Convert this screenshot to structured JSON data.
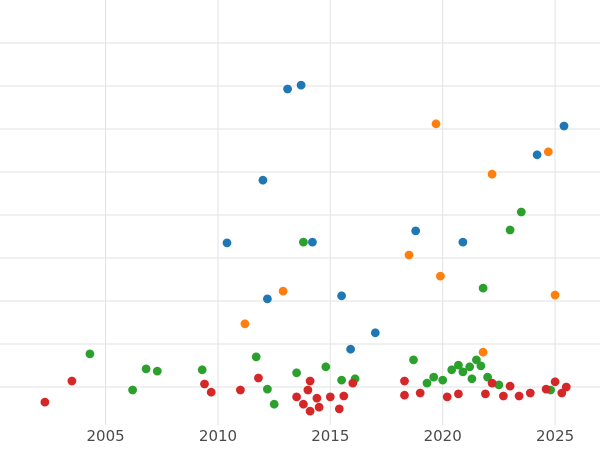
{
  "chart_data": {
    "type": "scatter",
    "title": "",
    "xlabel": "",
    "ylabel": "",
    "description": "Scatter plot with blue, orange, green and red points spanning years 2002 to 2025; no y-axis labels visible",
    "x_ticks": [
      2005,
      2010,
      2015,
      2020,
      2025
    ],
    "x_tick_labels": [
      "2005",
      "2010",
      "2015",
      "2020",
      "2025"
    ],
    "x_range": [
      2000.3,
      2027.0
    ],
    "y_range": [
      0,
      100
    ],
    "y_gridlines": [
      10,
      20,
      30,
      40,
      50,
      60,
      70,
      80,
      90
    ],
    "y_tick_labels_visible": false,
    "grid": true,
    "legend": "none",
    "marker": {
      "shape": "circle",
      "radius": 4.4
    },
    "style": {
      "background_color": "#ffffff",
      "gridline_color": "#e2e2e2",
      "tick_label_color": "#4a4a4a",
      "tick_label_size": 15
    },
    "series": [
      {
        "name": "blue",
        "color": "#1f77b4",
        "points": [
          [
            2013.1,
            79.3
          ],
          [
            2013.7,
            80.2
          ],
          [
            2012.0,
            58.1
          ],
          [
            2025.4,
            70.7
          ],
          [
            2024.2,
            64.0
          ],
          [
            2018.8,
            46.3
          ],
          [
            2020.9,
            43.7
          ],
          [
            2010.4,
            43.5
          ],
          [
            2014.2,
            43.7
          ],
          [
            2015.5,
            31.2
          ],
          [
            2012.2,
            30.5
          ],
          [
            2017.0,
            22.6
          ],
          [
            2015.9,
            18.8
          ]
        ]
      },
      {
        "name": "orange",
        "color": "#ff7f0e",
        "points": [
          [
            2019.7,
            71.2
          ],
          [
            2024.7,
            64.7
          ],
          [
            2022.2,
            59.5
          ],
          [
            2018.5,
            40.7
          ],
          [
            2019.9,
            35.8
          ],
          [
            2025.0,
            31.4
          ],
          [
            2012.9,
            32.3
          ],
          [
            2011.2,
            24.7
          ],
          [
            2021.8,
            18.1
          ]
        ]
      },
      {
        "name": "green",
        "color": "#2ca02c",
        "points": [
          [
            2004.3,
            17.7
          ],
          [
            2006.8,
            14.2
          ],
          [
            2007.3,
            13.7
          ],
          [
            2006.2,
            9.3
          ],
          [
            2009.3,
            14.0
          ],
          [
            2011.7,
            17.0
          ],
          [
            2013.8,
            43.7
          ],
          [
            2023.5,
            50.7
          ],
          [
            2023.0,
            46.5
          ],
          [
            2021.8,
            33.0
          ],
          [
            2014.8,
            14.7
          ],
          [
            2015.5,
            11.6
          ],
          [
            2016.1,
            11.9
          ],
          [
            2018.7,
            16.3
          ],
          [
            2012.2,
            9.5
          ],
          [
            2012.5,
            6.0
          ],
          [
            2013.5,
            13.3
          ],
          [
            2019.3,
            10.9
          ],
          [
            2019.6,
            12.3
          ],
          [
            2020.0,
            11.6
          ],
          [
            2020.4,
            14.0
          ],
          [
            2020.7,
            15.1
          ],
          [
            2020.9,
            13.5
          ],
          [
            2021.2,
            14.7
          ],
          [
            2021.5,
            16.3
          ],
          [
            2021.3,
            11.9
          ],
          [
            2021.7,
            14.9
          ],
          [
            2022.0,
            12.3
          ],
          [
            2022.5,
            10.5
          ],
          [
            2024.8,
            9.3
          ]
        ]
      },
      {
        "name": "red",
        "color": "#d62728",
        "points": [
          [
            2002.3,
            6.5
          ],
          [
            2003.5,
            11.4
          ],
          [
            2009.4,
            10.7
          ],
          [
            2009.7,
            8.8
          ],
          [
            2011.0,
            9.3
          ],
          [
            2011.8,
            12.1
          ],
          [
            2013.5,
            7.7
          ],
          [
            2013.8,
            6.0
          ],
          [
            2014.0,
            9.3
          ],
          [
            2014.1,
            11.4
          ],
          [
            2014.4,
            7.4
          ],
          [
            2014.5,
            5.3
          ],
          [
            2014.1,
            4.4
          ],
          [
            2015.0,
            7.7
          ],
          [
            2015.4,
            4.9
          ],
          [
            2015.6,
            7.9
          ],
          [
            2016.0,
            10.9
          ],
          [
            2018.3,
            11.4
          ],
          [
            2018.3,
            8.1
          ],
          [
            2019.0,
            8.6
          ],
          [
            2020.2,
            7.7
          ],
          [
            2020.7,
            8.4
          ],
          [
            2021.9,
            8.4
          ],
          [
            2022.2,
            10.9
          ],
          [
            2022.7,
            7.9
          ],
          [
            2023.0,
            10.2
          ],
          [
            2023.4,
            7.9
          ],
          [
            2023.9,
            8.6
          ],
          [
            2024.6,
            9.5
          ],
          [
            2025.0,
            11.2
          ],
          [
            2025.3,
            8.6
          ],
          [
            2025.5,
            10.0
          ]
        ]
      }
    ]
  }
}
